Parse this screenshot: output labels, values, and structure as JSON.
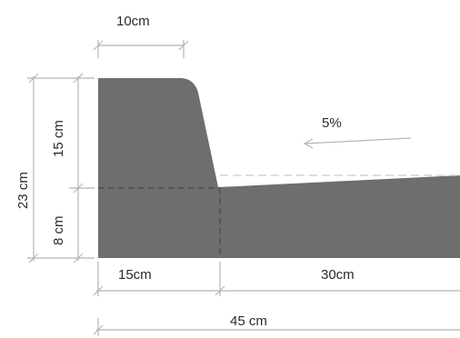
{
  "colors": {
    "fill": "#6e6e6e",
    "dim_line": "#b5b5b5",
    "dash_dark": "#4a4a4a",
    "dash_light": "#d4d4d4",
    "text": "#2a2a2a"
  },
  "labels": {
    "top_width": "10cm",
    "total_height": "23 cm",
    "upper_height": "15 cm",
    "lower_height": "8 cm",
    "slope": "5%",
    "left_width": "15cm",
    "right_width": "30cm",
    "total_width": "45 cm"
  }
}
